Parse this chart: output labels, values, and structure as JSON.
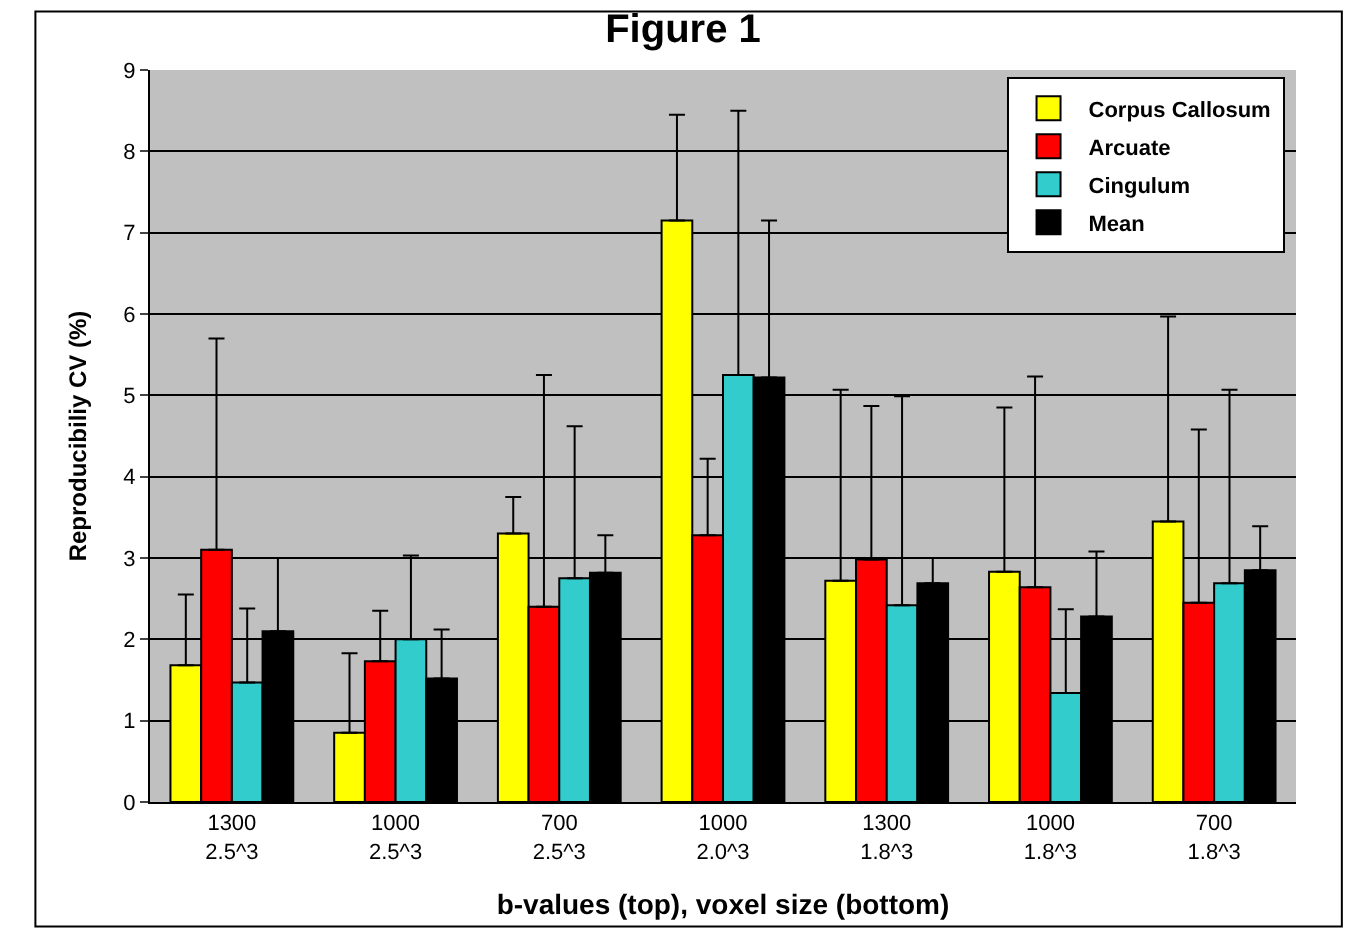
{
  "chart_data": {
    "type": "bar",
    "title": "Figure 1",
    "xlabel": "b-values (top), voxel size (bottom)",
    "ylabel": "Reproducibiliy CV (%)",
    "categories": [
      "1300\n2.5^3",
      "1000\n2.5^3",
      "700\n2.5^3",
      "1000\n2.0^3",
      "1300\n1.8^3",
      "1000\n1.8^3",
      "700\n1.8^3"
    ],
    "series": [
      {
        "name": "Corpus Callosum",
        "color": "#ffff00",
        "values": [
          1.68,
          0.85,
          3.3,
          7.15,
          2.72,
          2.83,
          3.45
        ],
        "errors": [
          [
            1.68,
            2.55
          ],
          [
            0.85,
            1.83
          ],
          [
            3.3,
            3.75
          ],
          [
            7.15,
            8.45
          ],
          [
            2.72,
            5.07
          ],
          [
            2.83,
            4.85
          ],
          [
            3.45,
            5.97
          ]
        ]
      },
      {
        "name": "Arcuate",
        "color": "#ff0000",
        "values": [
          3.1,
          1.73,
          2.4,
          3.28,
          2.98,
          2.64,
          2.45
        ],
        "errors": [
          [
            3.1,
            5.7
          ],
          [
            1.73,
            2.35
          ],
          [
            2.4,
            5.25
          ],
          [
            3.28,
            4.22
          ],
          [
            2.98,
            4.87
          ],
          [
            2.64,
            5.23
          ],
          [
            2.45,
            4.58
          ]
        ]
      },
      {
        "name": "Cingulum",
        "color": "#33cccc",
        "values": [
          1.47,
          2.0,
          2.75,
          5.25,
          2.42,
          1.34,
          2.69
        ],
        "errors": [
          [
            1.47,
            2.38
          ],
          [
            2.0,
            3.03
          ],
          [
            2.75,
            4.62
          ],
          [
            5.25,
            8.5
          ],
          [
            2.42,
            4.99
          ],
          [
            1.34,
            2.37
          ],
          [
            2.69,
            5.07
          ]
        ]
      },
      {
        "name": "Mean",
        "color": "#000000",
        "values": [
          2.1,
          1.52,
          2.82,
          5.22,
          2.69,
          2.28,
          2.85
        ],
        "errors": [
          [
            2.1,
            3.0
          ],
          [
            1.52,
            2.12
          ],
          [
            2.82,
            3.28
          ],
          [
            5.22,
            7.15
          ],
          [
            2.69,
            3.0
          ],
          [
            2.28,
            3.08
          ],
          [
            2.85,
            3.39
          ]
        ]
      }
    ],
    "ylim": [
      0,
      9
    ],
    "yticks": [
      0,
      1,
      2,
      3,
      4,
      5,
      6,
      7,
      8,
      9
    ],
    "grid": "y",
    "legend": "top right"
  }
}
